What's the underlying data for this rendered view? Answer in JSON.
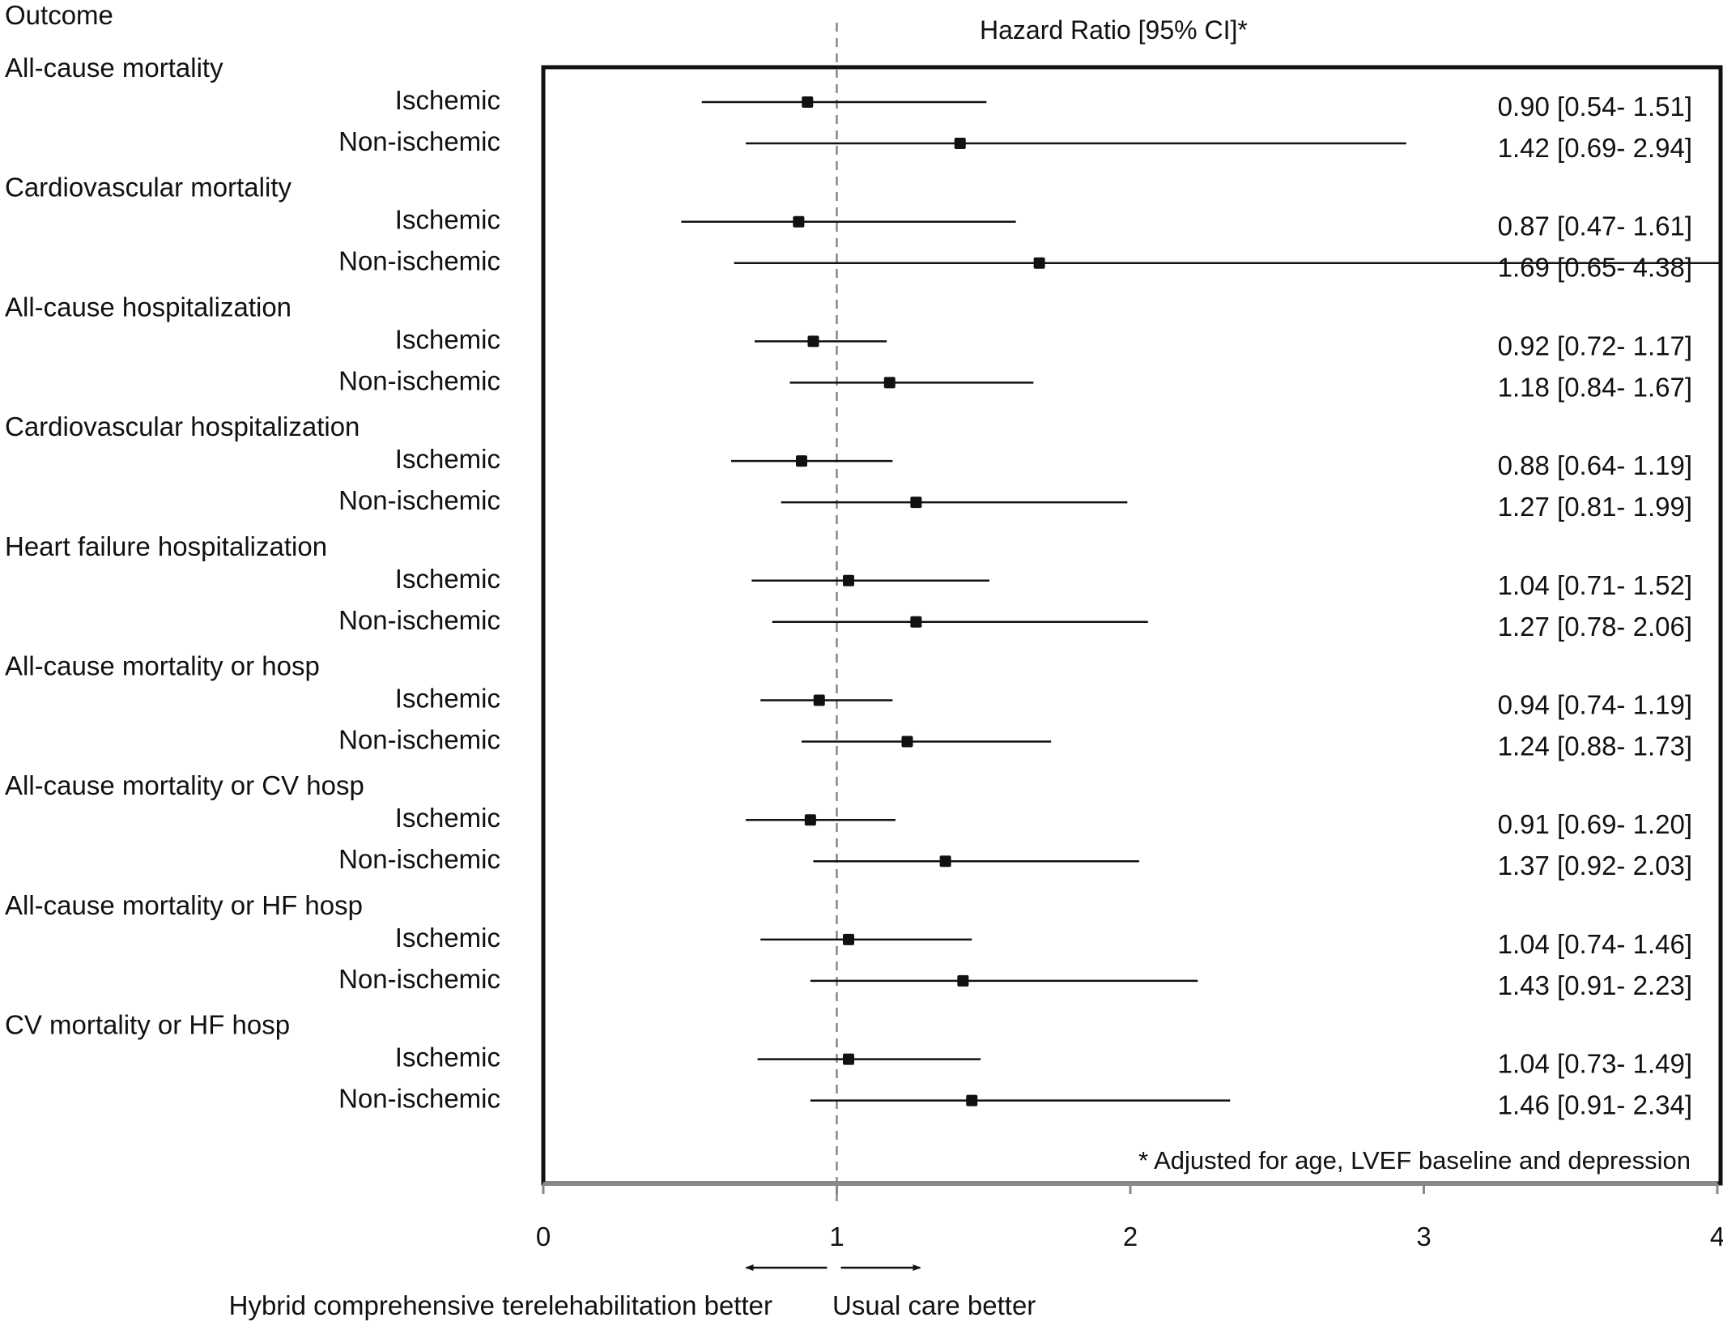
{
  "chart_data": {
    "type": "forest",
    "header_left": "Outcome",
    "header_right": "Hazard Ratio [95% CI]*",
    "footnote": "* Adjusted for age, LVEF baseline and depression",
    "xlim": [
      0,
      4
    ],
    "x_ticks": [
      "0",
      "1",
      "2",
      "3",
      "4"
    ],
    "reference_line": 1,
    "left_direction_label": "Hybrid comprehensive terelehabilitation better",
    "right_direction_label": "Usual care better",
    "colors": {
      "line": "#111111",
      "reference": "#888888",
      "background": "#ffffff"
    },
    "groups": [
      {
        "outcome": "All-cause mortality",
        "rows": [
          {
            "label": "Ischemic",
            "hr": 0.9,
            "lo": 0.54,
            "hi": 1.51,
            "text": "0.90 [0.54- 1.51]"
          },
          {
            "label": "Non-ischemic",
            "hr": 1.42,
            "lo": 0.69,
            "hi": 2.94,
            "text": "1.42 [0.69- 2.94]"
          }
        ]
      },
      {
        "outcome": "Cardiovascular mortality",
        "rows": [
          {
            "label": "Ischemic",
            "hr": 0.87,
            "lo": 0.47,
            "hi": 1.61,
            "text": "0.87 [0.47- 1.61]"
          },
          {
            "label": "Non-ischemic",
            "hr": 1.69,
            "lo": 0.65,
            "hi": 4.38,
            "text": "1.69 [0.65- 4.38]"
          }
        ]
      },
      {
        "outcome": "All-cause hospitalization",
        "rows": [
          {
            "label": "Ischemic",
            "hr": 0.92,
            "lo": 0.72,
            "hi": 1.17,
            "text": "0.92 [0.72- 1.17]"
          },
          {
            "label": "Non-ischemic",
            "hr": 1.18,
            "lo": 0.84,
            "hi": 1.67,
            "text": "1.18 [0.84- 1.67]"
          }
        ]
      },
      {
        "outcome": "Cardiovascular  hospitalization",
        "rows": [
          {
            "label": "Ischemic",
            "hr": 0.88,
            "lo": 0.64,
            "hi": 1.19,
            "text": "0.88 [0.64- 1.19]"
          },
          {
            "label": "Non-ischemic",
            "hr": 1.27,
            "lo": 0.81,
            "hi": 1.99,
            "text": "1.27 [0.81- 1.99]"
          }
        ]
      },
      {
        "outcome": "Heart failure  hospitalization",
        "rows": [
          {
            "label": "Ischemic",
            "hr": 1.04,
            "lo": 0.71,
            "hi": 1.52,
            "text": "1.04 [0.71- 1.52]"
          },
          {
            "label": "Non-ischemic",
            "hr": 1.27,
            "lo": 0.78,
            "hi": 2.06,
            "text": "1.27 [0.78- 2.06]"
          }
        ]
      },
      {
        "outcome": "All-cause mortality or hosp",
        "rows": [
          {
            "label": "Ischemic",
            "hr": 0.94,
            "lo": 0.74,
            "hi": 1.19,
            "text": "0.94 [0.74- 1.19]"
          },
          {
            "label": "Non-ischemic",
            "hr": 1.24,
            "lo": 0.88,
            "hi": 1.73,
            "text": "1.24 [0.88- 1.73]"
          }
        ]
      },
      {
        "outcome": "All-cause mortality or CV hosp",
        "rows": [
          {
            "label": "Ischemic",
            "hr": 0.91,
            "lo": 0.69,
            "hi": 1.2,
            "text": "0.91 [0.69- 1.20]"
          },
          {
            "label": "Non-ischemic",
            "hr": 1.37,
            "lo": 0.92,
            "hi": 2.03,
            "text": "1.37 [0.92- 2.03]"
          }
        ]
      },
      {
        "outcome": "All-cause mortality or HF hosp",
        "rows": [
          {
            "label": "Ischemic",
            "hr": 1.04,
            "lo": 0.74,
            "hi": 1.46,
            "text": "1.04 [0.74- 1.46]"
          },
          {
            "label": "Non-ischemic",
            "hr": 1.43,
            "lo": 0.91,
            "hi": 2.23,
            "text": "1.43 [0.91- 2.23]"
          }
        ]
      },
      {
        "outcome": "CV mortality or HF hosp",
        "rows": [
          {
            "label": "Ischemic",
            "hr": 1.04,
            "lo": 0.73,
            "hi": 1.49,
            "text": "1.04 [0.73- 1.49]"
          },
          {
            "label": "Non-ischemic",
            "hr": 1.46,
            "lo": 0.91,
            "hi": 2.34,
            "text": "1.46 [0.91- 2.34]"
          }
        ]
      }
    ]
  }
}
